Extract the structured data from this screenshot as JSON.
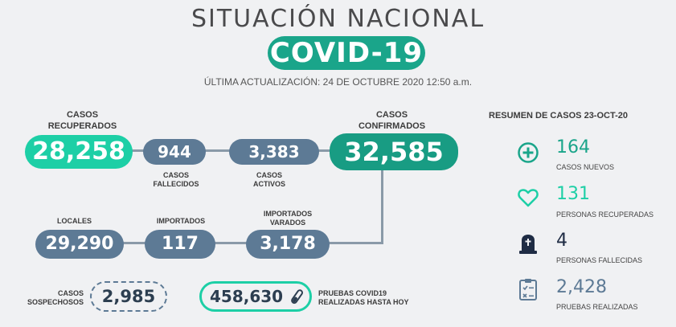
{
  "header": {
    "title": "SITUACIÓN NACIONAL",
    "badge": "COVID-19",
    "updated": "ÚLTIMA ACTUALIZACIÓN: 24 DE OCTUBRE 2020 12:50 a.m."
  },
  "flow": {
    "recuperados": {
      "label_1": "CASOS",
      "label_2": "RECUPERADOS",
      "value": "28,258"
    },
    "fallecidos": {
      "label_1": "CASOS",
      "label_2": "FALLECIDOS",
      "value": "944"
    },
    "activos": {
      "label_1": "CASOS",
      "label_2": "ACTIVOS",
      "value": "3,383"
    },
    "confirmados": {
      "label_1": "CASOS",
      "label_2": "CONFIRMADOS",
      "value": "32,585"
    },
    "locales": {
      "label": "LOCALES",
      "value": "29,290"
    },
    "importados": {
      "label": "IMPORTADOS",
      "value": "117"
    },
    "varados": {
      "label_1": "IMPORTADOS",
      "label_2": "VARADOS",
      "value": "3,178"
    }
  },
  "bottom": {
    "sospechosos": {
      "label_1": "CASOS",
      "label_2": "SOSPECHOSOS",
      "value": "2,985"
    },
    "pruebas": {
      "value": "458,630",
      "label_1": "PRUEBAS COVID19",
      "label_2": "REALIZADAS HASTA HOY"
    }
  },
  "summary": {
    "title": "RESUMEN DE CASOS 23-OCT-20",
    "items": [
      {
        "icon": "plus-circle-icon",
        "value": "164",
        "caption": "CASOS NUEVOS",
        "color": "#1aa58a"
      },
      {
        "icon": "heart-icon",
        "value": "131",
        "caption": "PERSONAS RECUPERADAS",
        "color": "#1dcfa6"
      },
      {
        "icon": "tombstone-icon",
        "value": "4",
        "caption": "PERSONAS FALLECIDAS",
        "color": "#1f2c44"
      },
      {
        "icon": "clipboard-icon",
        "value": "2,428",
        "caption": "PRUEBAS REALIZADAS",
        "color": "#5d7a95"
      }
    ]
  }
}
